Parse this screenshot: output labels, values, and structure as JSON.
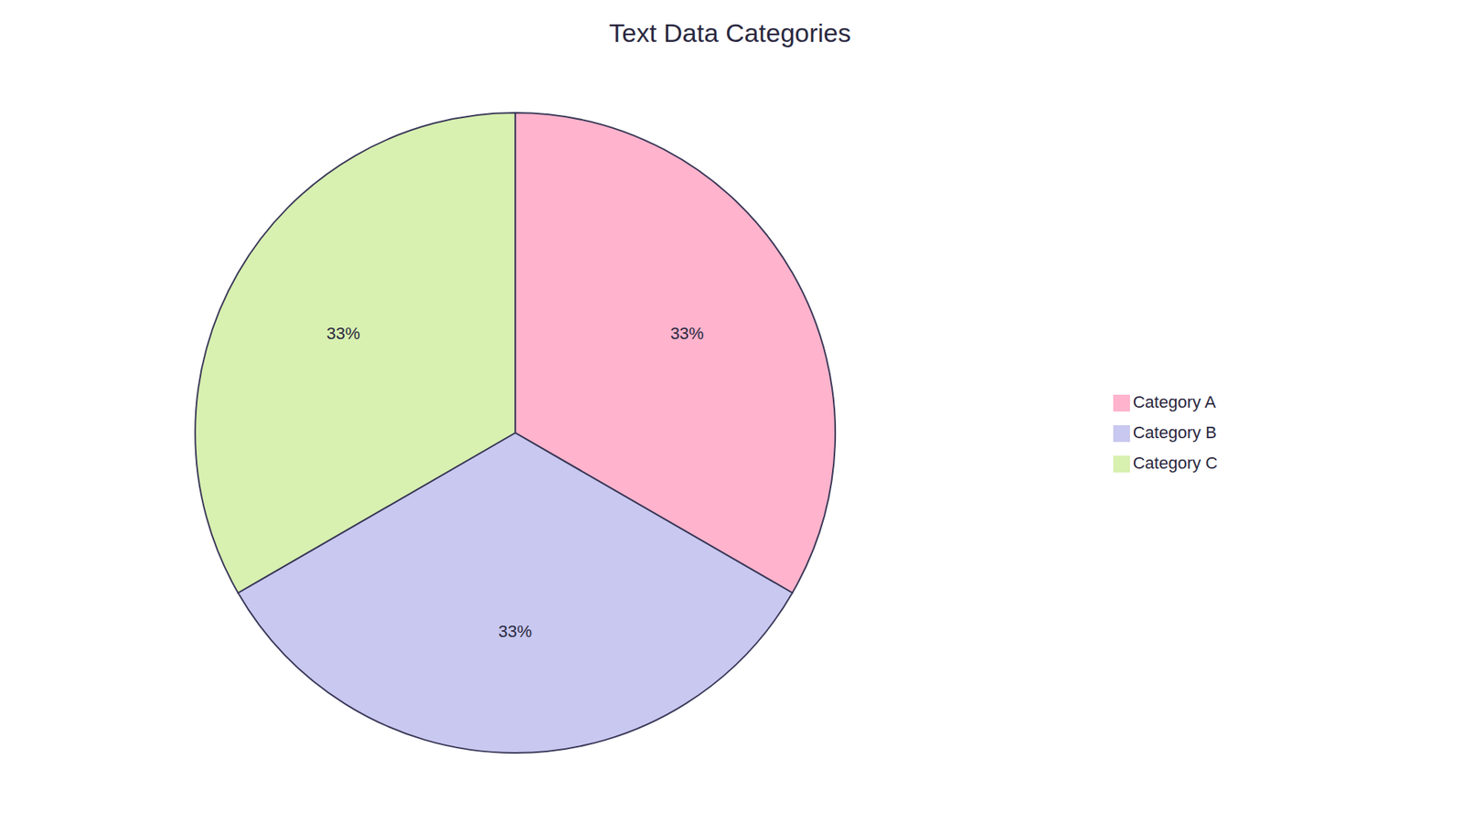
{
  "chart_data": {
    "type": "pie",
    "title": "Text Data Categories",
    "categories": [
      "Category A",
      "Category B",
      "Category C"
    ],
    "values": [
      33,
      33,
      33
    ],
    "value_labels": [
      "33%",
      "33%",
      "33%"
    ],
    "colors": [
      "#FFB3CC",
      "#C8C8F0",
      "#D8F0B0"
    ],
    "data_labels": true,
    "legend": "right"
  }
}
